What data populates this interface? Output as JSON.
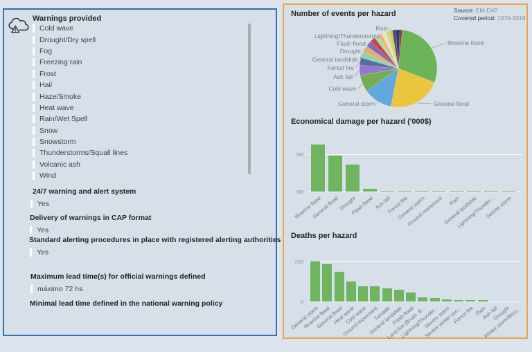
{
  "left_panel": {
    "warnings": {
      "title": "Warnings provided",
      "items": [
        "Cold wave",
        "Drought/Dry spell",
        "Fog",
        "Freezing rain",
        "Frost",
        "Hail",
        "Haze/Smoke",
        "Heat wave",
        "Rain/Wet Spell",
        "Snow",
        "Snowstorm",
        "Thunderstorms/Squall lines",
        "Volcanic ash",
        "Wind"
      ]
    },
    "sections": [
      {
        "heading": "24/7 warning and alert system",
        "value": "Yes"
      },
      {
        "heading": "Delivery of warnings in CAP format",
        "value": "Yes"
      },
      {
        "heading": "Standard alerting procedures in place with registered alerting authorities",
        "value": "Yes"
      },
      {
        "heading": "Maximum lead time(s) for official warnings defined",
        "value": "máximo 72 hs"
      },
      {
        "heading": "Minimal lead time defined in the national warning policy",
        "value": null
      }
    ]
  },
  "right_panel": {
    "source": {
      "label": "Source:",
      "value": "EM-DAT"
    },
    "period": {
      "label": "Covered period:",
      "value": "1970-2019"
    }
  },
  "chart_data": [
    {
      "type": "pie",
      "title": "Number of events per hazard",
      "legend_position": "labels-with-leader-lines",
      "slices": [
        {
          "label": "Riverine flood",
          "share_pct": 29.0,
          "color": "#6CB457"
        },
        {
          "label": "General flood",
          "share_pct": 22.0,
          "color": "#EAC63E"
        },
        {
          "label": "General storm",
          "share_pct": 12.0,
          "color": "#62A8DE"
        },
        {
          "label": "Cold wave",
          "share_pct": 7.0,
          "color": "#74AE54"
        },
        {
          "label": "Ash fall",
          "share_pct": 4.2,
          "color": "#9577CE"
        },
        {
          "label": "Forest fire",
          "share_pct": 3.1,
          "color": "#5D6D99"
        },
        {
          "label": "General landslide",
          "share_pct": 2.8,
          "color": "#8FD4AB"
        },
        {
          "label": "Drought",
          "share_pct": 2.5,
          "color": "#F0A868"
        },
        {
          "label": "Flash flood",
          "share_pct": 2.5,
          "color": "#8169BF"
        },
        {
          "label": "Lightning/Thunderstorms",
          "share_pct": 2.2,
          "color": "#C8473C"
        },
        {
          "label": null,
          "share_pct": 1.7,
          "color": "#9FDFB8"
        },
        {
          "label": null,
          "share_pct": 1.7,
          "color": "#F2B279"
        },
        {
          "label": null,
          "share_pct": 1.7,
          "color": "#EDE3C0"
        },
        {
          "label": null,
          "share_pct": 1.4,
          "color": "#BBDE9B"
        },
        {
          "label": "Rain",
          "share_pct": 1.4,
          "color": "#DDC93D"
        },
        {
          "label": null,
          "share_pct": 1.4,
          "color": "#4F4386"
        },
        {
          "label": null,
          "share_pct": 1.7,
          "color": "#2C3E6B"
        },
        {
          "label": null,
          "share_pct": 1.0,
          "color": "#8E3B3B"
        }
      ]
    },
    {
      "type": "bar",
      "title": "Economical damage per hazard ('000$)",
      "unit": "millions of '000$",
      "categories": [
        "Riverine flood",
        "General flood",
        "Drought",
        "Flash flood",
        "Ash fall",
        "Forest fire",
        "General storm",
        "Ground movement",
        "Rain",
        "General landslide",
        "Lightning/Thunder...",
        "Severe storm"
      ],
      "values": [
        6.3,
        4.8,
        3.6,
        0.35,
        0.08,
        0.08,
        0.08,
        0.08,
        0.08,
        0.08,
        0.08,
        0.08
      ],
      "y_ticks": [
        {
          "value": 0,
          "label": "0M"
        },
        {
          "value": 5,
          "label": "5M"
        }
      ],
      "ylim": [
        0,
        6.8
      ],
      "bar_color": "#6FB45F",
      "grid": true
    },
    {
      "type": "bar",
      "title": "Deaths per hazard",
      "categories": [
        "General storm",
        "Riverine flood",
        "General flood",
        "Heat wave",
        "Cold wave",
        "Ground movement",
        "Tornado",
        "General landslide",
        "Flash flood",
        "Land fire (Brush, B...",
        "Lightning/Thunder...",
        "Severe storm",
        "Severe winter con...",
        "Forest fire",
        "Rain",
        "Ash fall",
        "Drought",
        "Winter storm/Blizz..."
      ],
      "values": [
        200,
        186,
        148,
        100,
        76,
        76,
        65,
        59,
        45,
        21,
        17,
        10,
        8,
        8,
        8,
        0,
        0,
        0
      ],
      "y_ticks": [
        {
          "value": 0,
          "label": "0"
        },
        {
          "value": 200,
          "label": "200"
        }
      ],
      "ylim": [
        0,
        210
      ],
      "bar_color": "#6FB45F",
      "grid": true
    }
  ],
  "colors": {
    "page_bg": "#DEE4EE",
    "panel_bg": "#D7DFE9",
    "left_panel_border": "#2E74B5",
    "right_panel_border": "#EDA63F",
    "bar_green": "#6FB45F",
    "title_text": "#252423",
    "body_text": "#3F4348",
    "marker": "#FFFFFF"
  }
}
